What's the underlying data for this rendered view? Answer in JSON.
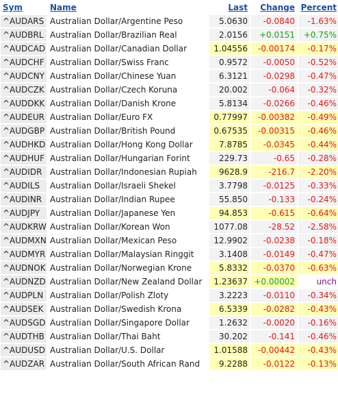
{
  "headers": {
    "sym": "Sym",
    "name": "Name",
    "last": "Last",
    "change": "Change",
    "percent": "Percent"
  },
  "colors": {
    "link": "#1a4f9c",
    "up": "#11a411",
    "down": "#e41818",
    "unchanged": "#8a0b8a",
    "highlight": "#ffffb3"
  },
  "rows": [
    {
      "sym": "^AUDARS",
      "name": "Australian Dollar/Argentine Peso",
      "last": "5.0630",
      "change": "-0.0840",
      "percent": "-1.63%",
      "dir": "down",
      "hl": false
    },
    {
      "sym": "^AUDBRL",
      "name": "Australian Dollar/Brazilian Real",
      "last": "2.0156",
      "change": "+0.0151",
      "percent": "+0.75%",
      "dir": "up",
      "hl": false
    },
    {
      "sym": "^AUDCAD",
      "name": "Australian Dollar/Canadian Dollar",
      "last": "1.04556",
      "change": "-0.00174",
      "percent": "-0.17%",
      "dir": "down",
      "hl": true
    },
    {
      "sym": "^AUDCHF",
      "name": "Australian Dollar/Swiss Franc",
      "last": "0.9572",
      "change": "-0.0050",
      "percent": "-0.52%",
      "dir": "down",
      "hl": false
    },
    {
      "sym": "^AUDCNY",
      "name": "Australian Dollar/Chinese Yuan",
      "last": "6.3121",
      "change": "-0.0298",
      "percent": "-0.47%",
      "dir": "down",
      "hl": false
    },
    {
      "sym": "^AUDCZK",
      "name": "Australian Dollar/Czech Koruna",
      "last": "20.002",
      "change": "-0.064",
      "percent": "-0.32%",
      "dir": "down",
      "hl": false
    },
    {
      "sym": "^AUDDKK",
      "name": "Australian Dollar/Danish Krone",
      "last": "5.8134",
      "change": "-0.0266",
      "percent": "-0.46%",
      "dir": "down",
      "hl": false
    },
    {
      "sym": "^AUDEUR",
      "name": "Australian Dollar/Euro FX",
      "last": "0.77997",
      "change": "-0.00382",
      "percent": "-0.49%",
      "dir": "down",
      "hl": true
    },
    {
      "sym": "^AUDGBP",
      "name": "Australian Dollar/British Pound",
      "last": "0.67535",
      "change": "-0.00315",
      "percent": "-0.46%",
      "dir": "down",
      "hl": true
    },
    {
      "sym": "^AUDHKD",
      "name": "Australian Dollar/Hong Kong Dollar",
      "last": "7.8785",
      "change": "-0.0345",
      "percent": "-0.44%",
      "dir": "down",
      "hl": true
    },
    {
      "sym": "^AUDHUF",
      "name": "Australian Dollar/Hungarian Forint",
      "last": "229.73",
      "change": "-0.65",
      "percent": "-0.28%",
      "dir": "down",
      "hl": false
    },
    {
      "sym": "^AUDIDR",
      "name": "Australian Dollar/Indonesian Rupiah",
      "last": "9628.9",
      "change": "-216.7",
      "percent": "-2.20%",
      "dir": "down",
      "hl": true
    },
    {
      "sym": "^AUDILS",
      "name": "Australian Dollar/Israeli Shekel",
      "last": "3.7798",
      "change": "-0.0125",
      "percent": "-0.33%",
      "dir": "down",
      "hl": false
    },
    {
      "sym": "^AUDINR",
      "name": "Australian Dollar/Indian Rupee",
      "last": "55.850",
      "change": "-0.133",
      "percent": "-0.24%",
      "dir": "down",
      "hl": false
    },
    {
      "sym": "^AUDJPY",
      "name": "Australian Dollar/Japanese Yen",
      "last": "94.853",
      "change": "-0.615",
      "percent": "-0.64%",
      "dir": "down",
      "hl": true
    },
    {
      "sym": "^AUDKRW",
      "name": "Australian Dollar/Korean Won",
      "last": "1077.08",
      "change": "-28.52",
      "percent": "-2.58%",
      "dir": "down",
      "hl": false
    },
    {
      "sym": "^AUDMXN",
      "name": "Australian Dollar/Mexican Peso",
      "last": "12.9902",
      "change": "-0.0238",
      "percent": "-0.18%",
      "dir": "down",
      "hl": false
    },
    {
      "sym": "^AUDMYR",
      "name": "Australian Dollar/Malaysian Ringgit",
      "last": "3.1408",
      "change": "-0.0149",
      "percent": "-0.47%",
      "dir": "down",
      "hl": false
    },
    {
      "sym": "^AUDNOK",
      "name": "Australian Dollar/Norwegian Krone",
      "last": "5.8332",
      "change": "-0.0370",
      "percent": "-0.63%",
      "dir": "down",
      "hl": true
    },
    {
      "sym": "^AUDNZD",
      "name": "Australian Dollar/New Zealand Dollar",
      "last": "1.23637",
      "change": "+0.00002",
      "percent": "unch",
      "dir": "up",
      "hl": true,
      "pct_flat": true
    },
    {
      "sym": "^AUDPLN",
      "name": "Australian Dollar/Polish Zloty",
      "last": "3.2223",
      "change": "-0.0110",
      "percent": "-0.34%",
      "dir": "down",
      "hl": false
    },
    {
      "sym": "^AUDSEK",
      "name": "Australian Dollar/Swedish Krona",
      "last": "6.5339",
      "change": "-0.0282",
      "percent": "-0.43%",
      "dir": "down",
      "hl": true
    },
    {
      "sym": "^AUDSGD",
      "name": "Australian Dollar/Singapore Dollar",
      "last": "1.2632",
      "change": "-0.0020",
      "percent": "-0.16%",
      "dir": "down",
      "hl": false
    },
    {
      "sym": "^AUDTHB",
      "name": "Australian Dollar/Thai Baht",
      "last": "30.202",
      "change": "-0.141",
      "percent": "-0.46%",
      "dir": "down",
      "hl": false
    },
    {
      "sym": "^AUDUSD",
      "name": "Australian Dollar/U.S. Dollar",
      "last": "1.01588",
      "change": "-0.00442",
      "percent": "-0.43%",
      "dir": "down",
      "hl": true
    },
    {
      "sym": "^AUDZAR",
      "name": "Australian Dollar/South African Rand",
      "last": "9.2288",
      "change": "-0.0122",
      "percent": "-0.13%",
      "dir": "down",
      "hl": true
    }
  ]
}
